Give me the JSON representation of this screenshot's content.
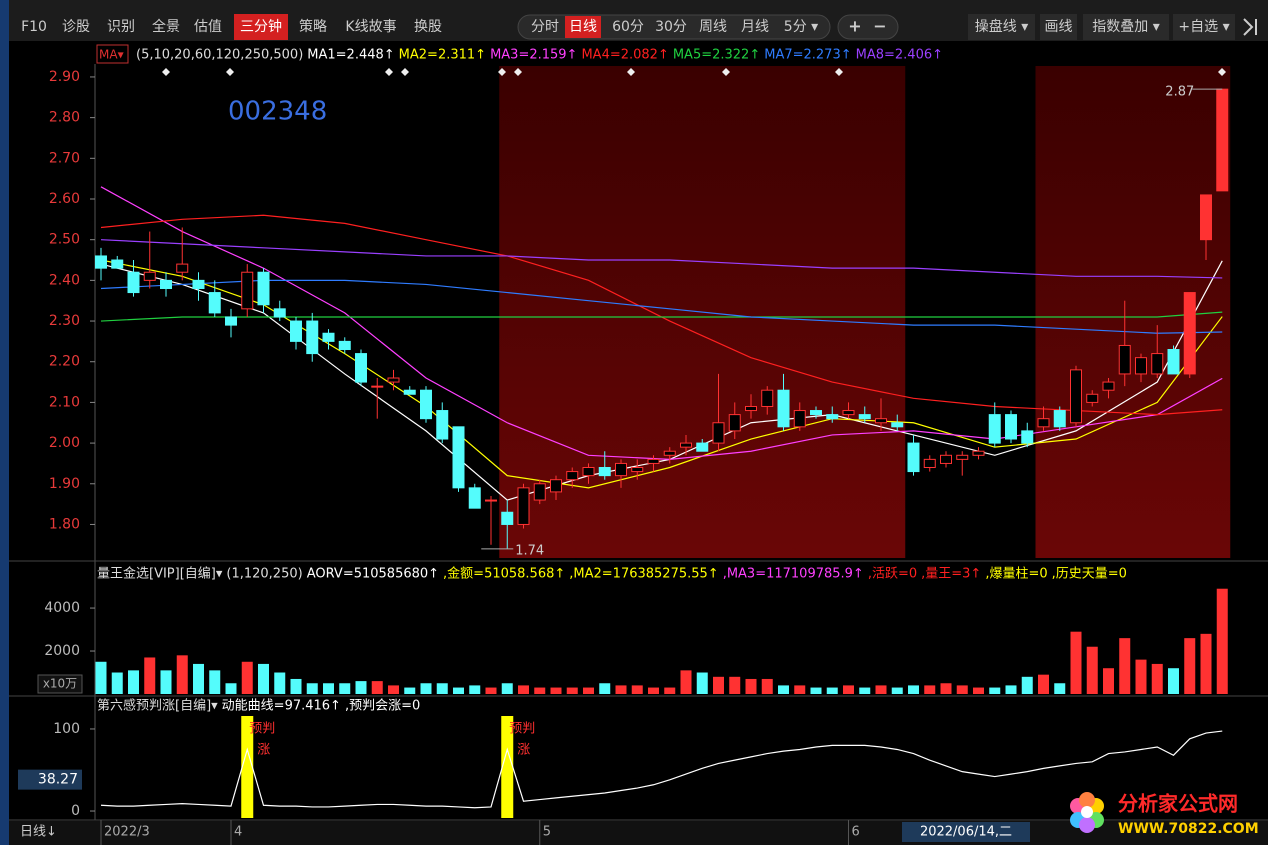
{
  "toolbar": {
    "left": [
      "F10",
      "诊股",
      "识别",
      "全景",
      "估值",
      "三分钟",
      "策略",
      "K线故事",
      "换股"
    ],
    "left_active": 5,
    "center": [
      "分时",
      "日线",
      "60分",
      "30分",
      "周线",
      "月线",
      "5分 ▾"
    ],
    "center_active": 1,
    "zoom": [
      "+",
      "−"
    ],
    "right": [
      "操盘线 ▾",
      "画线",
      "指数叠加 ▾",
      "+自选 ▾"
    ]
  },
  "chart_data": [
    {
      "type": "candlestick",
      "title": "002348",
      "ma_selector": "MA▾",
      "ma_params": "(5,10,20,60,120,250,500)",
      "open": [
        2.46,
        2.45,
        2.42,
        2.4,
        2.4,
        2.42,
        2.4,
        2.37,
        2.31,
        2.33,
        2.42,
        2.33,
        2.3,
        2.3,
        2.27,
        2.25,
        2.22,
        2.14,
        2.15,
        2.13,
        2.13,
        2.08,
        2.04,
        1.89,
        1.86,
        1.83,
        1.8,
        1.86,
        1.88,
        1.91,
        1.92,
        1.94,
        1.92,
        1.93,
        1.95,
        1.97,
        1.99,
        2.0,
        2.0,
        2.03,
        2.08,
        2.09,
        2.13,
        2.04,
        2.08,
        2.07,
        2.07,
        2.07,
        2.05,
        2.05,
        2.0,
        1.94,
        1.95,
        1.96,
        1.97,
        2.07,
        2.07,
        2.03,
        2.04,
        2.08,
        2.05,
        2.1,
        2.13,
        2.17,
        2.17,
        2.17,
        2.23,
        2.17,
        2.5,
        2.62
      ],
      "high": [
        2.48,
        2.46,
        2.45,
        2.52,
        2.42,
        2.53,
        2.42,
        2.4,
        2.33,
        2.44,
        2.43,
        2.35,
        2.31,
        2.32,
        2.28,
        2.26,
        2.23,
        2.16,
        2.18,
        2.14,
        2.14,
        2.1,
        2.04,
        1.9,
        1.87,
        1.86,
        1.9,
        1.91,
        1.92,
        1.94,
        1.95,
        1.98,
        1.96,
        1.96,
        1.97,
        1.99,
        2.02,
        2.01,
        2.17,
        2.1,
        2.12,
        2.14,
        2.17,
        2.1,
        2.09,
        2.09,
        2.1,
        2.09,
        2.11,
        2.07,
        2.02,
        1.97,
        1.98,
        1.98,
        1.99,
        2.1,
        2.08,
        2.05,
        2.09,
        2.09,
        2.19,
        2.13,
        2.16,
        2.35,
        2.22,
        2.29,
        2.24,
        2.37,
        2.61,
        2.87
      ],
      "low": [
        2.4,
        2.43,
        2.36,
        2.38,
        2.36,
        2.4,
        2.35,
        2.31,
        2.26,
        2.31,
        2.32,
        2.3,
        2.23,
        2.2,
        2.23,
        2.22,
        2.14,
        2.06,
        2.13,
        2.12,
        2.05,
        2.0,
        1.88,
        1.84,
        1.75,
        1.74,
        1.79,
        1.85,
        1.86,
        1.89,
        1.9,
        1.91,
        1.89,
        1.91,
        1.93,
        1.95,
        1.97,
        1.98,
        1.98,
        2.01,
        2.06,
        2.07,
        2.03,
        2.03,
        2.06,
        2.05,
        2.06,
        2.05,
        2.03,
        2.03,
        1.92,
        1.93,
        1.94,
        1.92,
        1.96,
        1.99,
        2.0,
        1.99,
        2.03,
        2.03,
        2.04,
        2.09,
        2.11,
        2.14,
        2.15,
        2.16,
        2.17,
        2.16,
        2.45,
        2.62
      ],
      "close": [
        2.43,
        2.43,
        2.37,
        2.42,
        2.38,
        2.44,
        2.38,
        2.32,
        2.29,
        2.42,
        2.34,
        2.31,
        2.25,
        2.22,
        2.25,
        2.23,
        2.15,
        2.14,
        2.16,
        2.12,
        2.06,
        2.01,
        1.89,
        1.84,
        1.86,
        1.8,
        1.89,
        1.9,
        1.91,
        1.93,
        1.94,
        1.92,
        1.95,
        1.94,
        1.96,
        1.98,
        2.0,
        1.98,
        2.05,
        2.07,
        2.09,
        2.13,
        2.04,
        2.08,
        2.07,
        2.06,
        2.08,
        2.06,
        2.06,
        2.04,
        1.93,
        1.96,
        1.97,
        1.97,
        1.98,
        2.0,
        2.01,
        2.0,
        2.06,
        2.04,
        2.18,
        2.12,
        2.15,
        2.24,
        2.21,
        2.22,
        2.17,
        2.37,
        2.61,
        2.87
      ],
      "up_color": "#ff3232",
      "down_color": "#54fcfc",
      "ylim": [
        1.72,
        2.922
      ],
      "yticks": [
        {
          "value": 1.8,
          "label": "1.80"
        },
        {
          "value": 1.9,
          "label": "1.90"
        },
        {
          "value": 2.0,
          "label": "2.00"
        },
        {
          "value": 2.1,
          "label": "2.10"
        },
        {
          "value": 2.2,
          "label": "2.20"
        },
        {
          "value": 2.3,
          "label": "2.30"
        },
        {
          "value": 2.4,
          "label": "2.40"
        },
        {
          "value": 2.5,
          "label": "2.50"
        },
        {
          "value": 2.6,
          "label": "2.60"
        },
        {
          "value": 2.7,
          "label": "2.70"
        },
        {
          "value": 2.8,
          "label": "2.80"
        },
        {
          "value": 2.9,
          "label": "2.90"
        }
      ],
      "tick_color": "#e83a3a",
      "highlight_ranges": [
        {
          "from": 25,
          "to": 49
        },
        {
          "from": 58,
          "to": 69
        }
      ],
      "high_marker": 2.87,
      "low_marker": 1.74,
      "lines": [
        {
          "name": "MA1=2.448↑",
          "color": "#ffffff",
          "x": [
            0,
            5,
            10,
            15,
            20,
            25,
            30,
            35,
            40,
            45,
            50,
            55,
            60,
            65,
            69
          ],
          "values": [
            2.44,
            2.39,
            2.32,
            2.17,
            2.03,
            1.86,
            1.92,
            1.96,
            2.05,
            2.07,
            2.02,
            1.97,
            2.03,
            2.15,
            2.448
          ]
        },
        {
          "name": "MA2=2.311↑",
          "color": "#ffff00",
          "x": [
            0,
            5,
            10,
            15,
            20,
            25,
            30,
            35,
            40,
            45,
            50,
            55,
            60,
            65,
            69
          ],
          "values": [
            2.45,
            2.41,
            2.34,
            2.22,
            2.09,
            1.92,
            1.89,
            1.94,
            2.01,
            2.06,
            2.05,
            1.99,
            2.01,
            2.1,
            2.311
          ]
        },
        {
          "name": "MA3=2.159↑",
          "color": "#ff40ff",
          "x": [
            0,
            5,
            10,
            15,
            20,
            25,
            30,
            35,
            40,
            45,
            50,
            55,
            60,
            65,
            69
          ],
          "values": [
            2.63,
            2.52,
            2.43,
            2.32,
            2.16,
            2.05,
            1.97,
            1.96,
            1.98,
            2.02,
            2.03,
            2.01,
            2.04,
            2.07,
            2.159
          ]
        },
        {
          "name": "MA4=2.082↑",
          "color": "#ff2020",
          "x": [
            0,
            5,
            10,
            15,
            20,
            25,
            30,
            35,
            40,
            45,
            50,
            55,
            60,
            65,
            69
          ],
          "values": [
            2.53,
            2.55,
            2.56,
            2.54,
            2.5,
            2.46,
            2.4,
            2.3,
            2.21,
            2.15,
            2.11,
            2.09,
            2.08,
            2.07,
            2.082
          ]
        },
        {
          "name": "MA5=2.322↑",
          "color": "#20d040",
          "x": [
            0,
            5,
            10,
            15,
            20,
            25,
            30,
            35,
            40,
            45,
            50,
            55,
            60,
            65,
            69
          ],
          "values": [
            2.3,
            2.31,
            2.31,
            2.31,
            2.31,
            2.31,
            2.31,
            2.31,
            2.31,
            2.31,
            2.31,
            2.31,
            2.31,
            2.31,
            2.322
          ]
        },
        {
          "name": "MA7=2.273↑",
          "color": "#2f7cff",
          "x": [
            0,
            5,
            10,
            15,
            20,
            25,
            30,
            35,
            40,
            45,
            50,
            55,
            60,
            65,
            69
          ],
          "values": [
            2.38,
            2.39,
            2.4,
            2.4,
            2.39,
            2.37,
            2.35,
            2.33,
            2.31,
            2.3,
            2.29,
            2.29,
            2.28,
            2.27,
            2.273
          ]
        },
        {
          "name": "MA8=2.406↑",
          "color": "#9a40ff",
          "x": [
            0,
            5,
            10,
            15,
            20,
            25,
            30,
            35,
            40,
            45,
            50,
            55,
            60,
            65,
            69
          ],
          "values": [
            2.5,
            2.49,
            2.48,
            2.47,
            2.46,
            2.46,
            2.45,
            2.45,
            2.44,
            2.43,
            2.43,
            2.42,
            2.41,
            2.41,
            2.406
          ]
        }
      ]
    },
    {
      "type": "bar",
      "title": "量王金选[VIP][自编]▾",
      "params": "(1,120,250)",
      "indicators": [
        {
          "name": "AORV=510585680↑",
          "color": "#ffffff"
        },
        {
          "name": ",金额=51058.568↑",
          "color": "#ffff00"
        },
        {
          "name": ",MA2=176385275.55↑",
          "color": "#ffff00"
        },
        {
          "name": ",MA3=117109785.9↑",
          "color": "#ff40ff"
        },
        {
          "name": ",活跃=0",
          "color": "#ff2020"
        },
        {
          "name": ",量王=3↑",
          "color": "#ff2020"
        },
        {
          "name": ",爆量柱=0",
          "color": "#ffff00"
        },
        {
          "name": ",历史天量=0",
          "color": "#ffff00"
        }
      ],
      "values": [
        1500,
        1000,
        1100,
        1700,
        1100,
        1800,
        1400,
        1100,
        500,
        1500,
        1400,
        1000,
        700,
        500,
        500,
        500,
        600,
        600,
        400,
        300,
        500,
        500,
        300,
        400,
        300,
        500,
        400,
        300,
        300,
        300,
        300,
        500,
        400,
        400,
        300,
        300,
        1100,
        1000,
        800,
        800,
        700,
        700,
        400,
        400,
        300,
        300,
        400,
        300,
        400,
        300,
        400,
        400,
        500,
        400,
        300,
        300,
        400,
        800,
        900,
        500,
        2900,
        2200,
        1200,
        2600,
        1600,
        1400,
        1200,
        2600,
        2800,
        4900
      ],
      "ylim": [
        0,
        4980
      ],
      "yticks": [
        2000,
        4000
      ],
      "unit_label": "x10万"
    },
    {
      "type": "line",
      "title": "第六感预判涨[自编]▾",
      "indicators": [
        {
          "name": "动能曲线=97.416↑",
          "color": "#ffffff"
        },
        {
          "name": ",预判会涨=0",
          "color": "#ffffff"
        }
      ],
      "values": [
        7,
        6,
        6,
        7,
        8,
        9,
        8,
        7,
        6,
        75,
        7,
        6,
        6,
        5,
        5,
        6,
        7,
        8,
        8,
        7,
        6,
        6,
        5,
        4,
        5,
        75,
        12,
        14,
        16,
        18,
        20,
        22,
        25,
        28,
        32,
        38,
        45,
        52,
        58,
        62,
        66,
        70,
        73,
        75,
        78,
        80,
        80,
        80,
        78,
        75,
        70,
        62,
        55,
        48,
        45,
        42,
        45,
        48,
        52,
        55,
        58,
        60,
        70,
        72,
        75,
        78,
        68,
        88,
        95,
        97.416
      ],
      "color": "#ffffff",
      "ylim": [
        -8.5,
        115.8
      ],
      "yticks": [
        0,
        100
      ],
      "cursor_value": 38.27,
      "signals": [
        {
          "index": 9,
          "texts": [
            "预判",
            "涨"
          ]
        },
        {
          "index": 25,
          "texts": [
            "预判",
            "涨"
          ]
        }
      ],
      "signal_color": "#ffff00"
    }
  ],
  "x_axis": {
    "period": "日线↓",
    "labels": [
      {
        "index": 0,
        "label": "2022/3"
      },
      {
        "index": 8,
        "label": "4"
      },
      {
        "index": 27,
        "label": "5"
      },
      {
        "index": 46,
        "label": "6"
      }
    ],
    "cursor_label": "2022/06/14,二"
  },
  "watermark": {
    "title": "分析家公式网",
    "url": "WWW.70822.COM"
  }
}
